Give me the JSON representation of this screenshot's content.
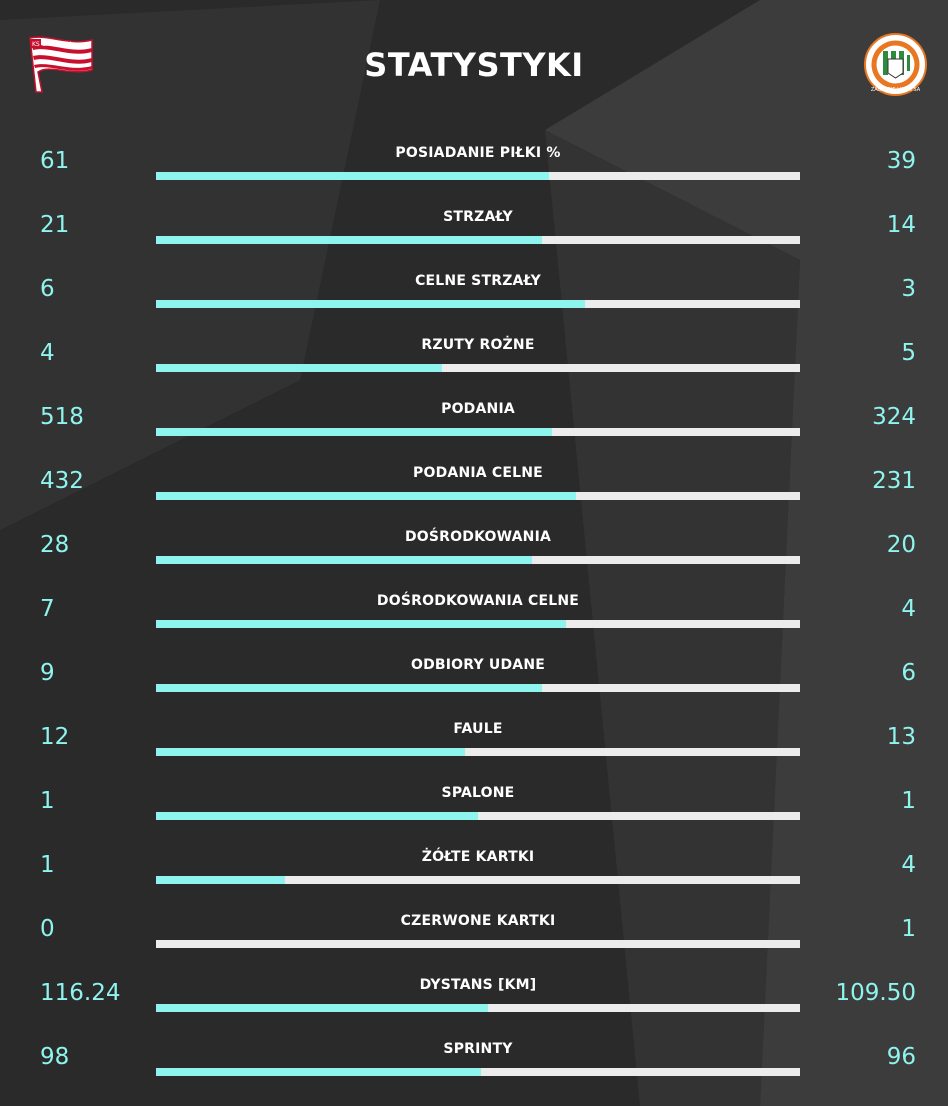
{
  "title": "STATYSTYKI",
  "teams": {
    "home": {
      "logo_icon": "cracovia-crest-icon",
      "logo_text": "KS CRACOVIA"
    },
    "away": {
      "logo_icon": "zaglebie-lubin-crest-icon",
      "logo_text": "ZAGŁĘBIE LUBIN SA"
    }
  },
  "colors": {
    "accent": "#8ff4ee",
    "bar_background": "#ececec",
    "page_background": "#2a2a2a"
  },
  "stats": [
    {
      "label": "POSIADANIE PIŁKI %",
      "home": "61",
      "away": "39",
      "home_share": 0.61
    },
    {
      "label": "STRZAŁY",
      "home": "21",
      "away": "14",
      "home_share": 0.6
    },
    {
      "label": "CELNE STRZAŁY",
      "home": "6",
      "away": "3",
      "home_share": 0.6667
    },
    {
      "label": "RZUTY ROŻNE",
      "home": "4",
      "away": "5",
      "home_share": 0.4444
    },
    {
      "label": "PODANIA",
      "home": "518",
      "away": "324",
      "home_share": 0.6152
    },
    {
      "label": "PODANIA CELNE",
      "home": "432",
      "away": "231",
      "home_share": 0.6516
    },
    {
      "label": "DOŚRODKOWANIA",
      "home": "28",
      "away": "20",
      "home_share": 0.5833
    },
    {
      "label": "DOŚRODKOWANIA CELNE",
      "home": "7",
      "away": "4",
      "home_share": 0.6364
    },
    {
      "label": "ODBIORY UDANE",
      "home": "9",
      "away": "6",
      "home_share": 0.6
    },
    {
      "label": "FAULE",
      "home": "12",
      "away": "13",
      "home_share": 0.48
    },
    {
      "label": "SPALONE",
      "home": "1",
      "away": "1",
      "home_share": 0.5
    },
    {
      "label": "ŻÓŁTE KARTKI",
      "home": "1",
      "away": "4",
      "home_share": 0.2
    },
    {
      "label": "CZERWONE KARTKI",
      "home": "0",
      "away": "1",
      "home_share": 0.0
    },
    {
      "label": "DYSTANS [KM]",
      "home": "116.24",
      "away": "109.50",
      "home_share": 0.515
    },
    {
      "label": "SPRINTY",
      "home": "98",
      "away": "96",
      "home_share": 0.5052
    }
  ]
}
